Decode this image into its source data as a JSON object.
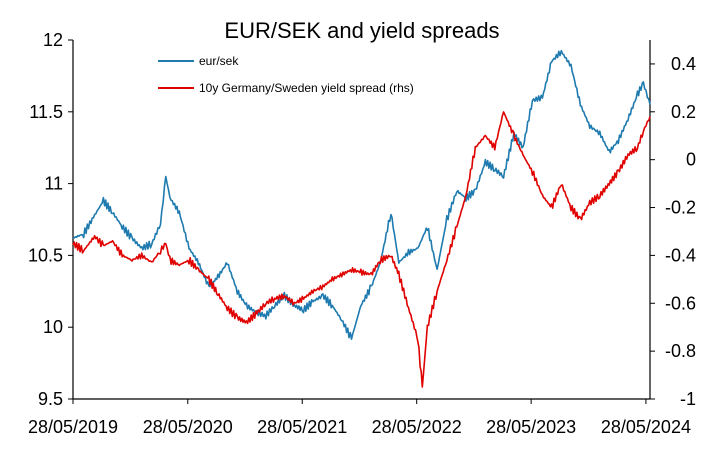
{
  "chart_data": {
    "type": "line",
    "title": "EUR/SEK and yield spreads",
    "xlabel": "",
    "ylabel": "",
    "y2label": "",
    "x_tick_labels": [
      "28/05/2019",
      "28/05/2020",
      "28/05/2021",
      "28/05/2022",
      "28/05/2023",
      "28/05/2024"
    ],
    "x_range": [
      "2019-05-28",
      "2024-06-10"
    ],
    "y_left": {
      "range": [
        9.5,
        12
      ],
      "ticks": [
        9.5,
        10,
        10.5,
        11,
        11.5,
        12
      ],
      "tick_labels": [
        "9.5",
        "10",
        "10.5",
        "11",
        "11.5",
        "12"
      ]
    },
    "y_right": {
      "range": [
        -1,
        0.5
      ],
      "ticks": [
        -1,
        -0.8,
        -0.6,
        -0.4,
        -0.2,
        0,
        0.2,
        0.4
      ],
      "tick_labels": [
        "-1",
        "-0.8",
        "-0.6",
        "-0.4",
        "-0.2",
        "0",
        "0.2",
        "0.4"
      ]
    },
    "grid": false,
    "legend_position": "top-center",
    "series": [
      {
        "name": "eur/sek",
        "axis": "left",
        "color": "#1F7BAF",
        "points": [
          [
            "2019-05-28",
            10.62
          ],
          [
            "2019-07-01",
            10.65
          ],
          [
            "2019-08-05",
            10.78
          ],
          [
            "2019-09-02",
            10.88
          ],
          [
            "2019-10-01",
            10.8
          ],
          [
            "2019-11-01",
            10.7
          ],
          [
            "2019-12-02",
            10.62
          ],
          [
            "2020-01-02",
            10.55
          ],
          [
            "2020-02-03",
            10.58
          ],
          [
            "2020-03-02",
            10.72
          ],
          [
            "2020-03-19",
            11.05
          ],
          [
            "2020-04-01",
            10.9
          ],
          [
            "2020-05-01",
            10.8
          ],
          [
            "2020-06-01",
            10.55
          ],
          [
            "2020-07-01",
            10.45
          ],
          [
            "2020-08-03",
            10.28
          ],
          [
            "2020-09-01",
            10.35
          ],
          [
            "2020-10-01",
            10.45
          ],
          [
            "2020-11-02",
            10.25
          ],
          [
            "2020-12-01",
            10.15
          ],
          [
            "2021-01-04",
            10.1
          ],
          [
            "2021-02-01",
            10.08
          ],
          [
            "2021-03-01",
            10.15
          ],
          [
            "2021-04-01",
            10.22
          ],
          [
            "2021-05-03",
            10.15
          ],
          [
            "2021-06-01",
            10.12
          ],
          [
            "2021-07-01",
            10.18
          ],
          [
            "2021-08-02",
            10.22
          ],
          [
            "2021-09-01",
            10.15
          ],
          [
            "2021-10-01",
            10.05
          ],
          [
            "2021-11-01",
            9.92
          ],
          [
            "2021-12-01",
            10.15
          ],
          [
            "2022-01-03",
            10.28
          ],
          [
            "2022-02-01",
            10.45
          ],
          [
            "2022-03-07",
            10.8
          ],
          [
            "2022-04-01",
            10.45
          ],
          [
            "2022-05-02",
            10.52
          ],
          [
            "2022-06-01",
            10.55
          ],
          [
            "2022-07-01",
            10.7
          ],
          [
            "2022-08-01",
            10.4
          ],
          [
            "2022-09-01",
            10.75
          ],
          [
            "2022-10-03",
            10.95
          ],
          [
            "2022-11-01",
            10.9
          ],
          [
            "2022-12-01",
            10.95
          ],
          [
            "2023-01-02",
            11.15
          ],
          [
            "2023-02-01",
            11.1
          ],
          [
            "2023-03-01",
            11.05
          ],
          [
            "2023-04-03",
            11.35
          ],
          [
            "2023-05-02",
            11.25
          ],
          [
            "2023-06-01",
            11.58
          ],
          [
            "2023-07-03",
            11.6
          ],
          [
            "2023-08-01",
            11.85
          ],
          [
            "2023-09-01",
            11.92
          ],
          [
            "2023-10-02",
            11.82
          ],
          [
            "2023-11-01",
            11.55
          ],
          [
            "2023-12-01",
            11.4
          ],
          [
            "2024-01-02",
            11.35
          ],
          [
            "2024-02-01",
            11.22
          ],
          [
            "2024-03-01",
            11.3
          ],
          [
            "2024-04-01",
            11.45
          ],
          [
            "2024-05-01",
            11.62
          ],
          [
            "2024-05-20",
            11.7
          ],
          [
            "2024-06-10",
            11.55
          ]
        ]
      },
      {
        "name": "10y Germany/Sweden yield spread (rhs)",
        "axis": "right",
        "color": "#E00000",
        "points": [
          [
            "2019-05-28",
            -0.35
          ],
          [
            "2019-07-01",
            -0.38
          ],
          [
            "2019-08-05",
            -0.32
          ],
          [
            "2019-09-02",
            -0.36
          ],
          [
            "2019-10-01",
            -0.34
          ],
          [
            "2019-11-01",
            -0.4
          ],
          [
            "2019-12-02",
            -0.42
          ],
          [
            "2020-01-02",
            -0.4
          ],
          [
            "2020-02-03",
            -0.43
          ],
          [
            "2020-03-02",
            -0.38
          ],
          [
            "2020-03-19",
            -0.35
          ],
          [
            "2020-04-01",
            -0.42
          ],
          [
            "2020-05-01",
            -0.44
          ],
          [
            "2020-06-01",
            -0.42
          ],
          [
            "2020-07-01",
            -0.46
          ],
          [
            "2020-08-03",
            -0.5
          ],
          [
            "2020-09-01",
            -0.56
          ],
          [
            "2020-10-01",
            -0.62
          ],
          [
            "2020-11-02",
            -0.66
          ],
          [
            "2020-12-01",
            -0.68
          ],
          [
            "2021-01-04",
            -0.64
          ],
          [
            "2021-02-01",
            -0.6
          ],
          [
            "2021-03-01",
            -0.58
          ],
          [
            "2021-04-01",
            -0.57
          ],
          [
            "2021-05-03",
            -0.6
          ],
          [
            "2021-06-01",
            -0.58
          ],
          [
            "2021-07-01",
            -0.55
          ],
          [
            "2021-08-02",
            -0.53
          ],
          [
            "2021-09-01",
            -0.5
          ],
          [
            "2021-10-01",
            -0.48
          ],
          [
            "2021-11-01",
            -0.46
          ],
          [
            "2021-12-01",
            -0.47
          ],
          [
            "2022-01-03",
            -0.48
          ],
          [
            "2022-02-01",
            -0.42
          ],
          [
            "2022-03-07",
            -0.4
          ],
          [
            "2022-04-01",
            -0.48
          ],
          [
            "2022-05-02",
            -0.62
          ],
          [
            "2022-06-01",
            -0.75
          ],
          [
            "2022-06-15",
            -0.95
          ],
          [
            "2022-07-01",
            -0.7
          ],
          [
            "2022-08-01",
            -0.55
          ],
          [
            "2022-09-01",
            -0.42
          ],
          [
            "2022-10-03",
            -0.28
          ],
          [
            "2022-11-01",
            -0.15
          ],
          [
            "2022-12-01",
            0.05
          ],
          [
            "2023-01-02",
            0.1
          ],
          [
            "2023-02-01",
            0.05
          ],
          [
            "2023-03-01",
            0.2
          ],
          [
            "2023-04-03",
            0.1
          ],
          [
            "2023-05-02",
            0.02
          ],
          [
            "2023-06-01",
            -0.05
          ],
          [
            "2023-07-03",
            -0.15
          ],
          [
            "2023-08-01",
            -0.2
          ],
          [
            "2023-09-01",
            -0.1
          ],
          [
            "2023-10-02",
            -0.2
          ],
          [
            "2023-11-01",
            -0.25
          ],
          [
            "2023-12-01",
            -0.18
          ],
          [
            "2024-01-02",
            -0.15
          ],
          [
            "2024-02-01",
            -0.1
          ],
          [
            "2024-03-01",
            -0.05
          ],
          [
            "2024-04-01",
            0.02
          ],
          [
            "2024-05-01",
            0.05
          ],
          [
            "2024-05-20",
            0.12
          ],
          [
            "2024-06-10",
            0.18
          ]
        ]
      }
    ]
  }
}
